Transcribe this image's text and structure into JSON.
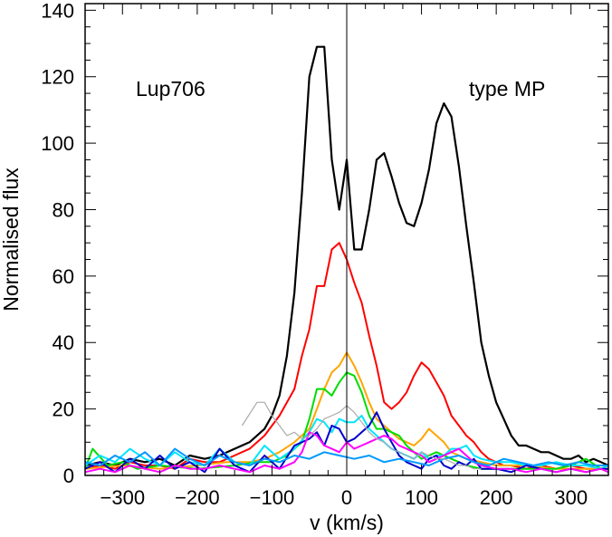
{
  "chart_data": {
    "type": "line",
    "title": "",
    "xlabel": "v (km/s)",
    "ylabel": "Normalised flux",
    "xlim": [
      -350,
      350
    ],
    "ylim": [
      0,
      142
    ],
    "xticks": [
      -300,
      -200,
      -100,
      0,
      100,
      200,
      300
    ],
    "yticks": [
      0,
      20,
      40,
      60,
      80,
      100,
      120,
      140
    ],
    "grid": false,
    "legend": "none",
    "zero_line": 0,
    "annotations": [
      {
        "text": "Lup706",
        "position": "upper-left"
      },
      {
        "text": "type MP",
        "position": "upper-right"
      }
    ],
    "series": [
      {
        "color": "#000000",
        "width": 2.2,
        "x": [
          -350,
          -330,
          -310,
          -290,
          -270,
          -250,
          -230,
          -210,
          -190,
          -170,
          -150,
          -130,
          -110,
          -100,
          -90,
          -80,
          -70,
          -60,
          -50,
          -40,
          -30,
          -20,
          -10,
          0,
          10,
          20,
          30,
          40,
          50,
          60,
          70,
          80,
          90,
          100,
          110,
          120,
          130,
          140,
          150,
          160,
          170,
          180,
          190,
          200,
          210,
          220,
          230,
          240,
          250,
          260,
          270,
          280,
          290,
          300,
          310,
          320,
          330,
          340,
          350
        ],
        "y": [
          3,
          4,
          3,
          5,
          4,
          5,
          3,
          6,
          5,
          6,
          8,
          10,
          14,
          18,
          24,
          36,
          55,
          85,
          120,
          129,
          129,
          95,
          80,
          95,
          68,
          68,
          80,
          95,
          97,
          90,
          82,
          76,
          75,
          82,
          92,
          106,
          112,
          108,
          93,
          75,
          58,
          40,
          30,
          22,
          17,
          12,
          9,
          9,
          8,
          7,
          7,
          6,
          5,
          5,
          6,
          4,
          5,
          4,
          3
        ]
      },
      {
        "color": "#ff0000",
        "width": 2,
        "x": [
          -350,
          -330,
          -310,
          -290,
          -270,
          -250,
          -230,
          -210,
          -190,
          -170,
          -150,
          -130,
          -110,
          -90,
          -70,
          -60,
          -50,
          -40,
          -30,
          -20,
          -10,
          0,
          10,
          20,
          30,
          40,
          50,
          60,
          70,
          80,
          90,
          100,
          110,
          120,
          130,
          140,
          150,
          160,
          170,
          180,
          190,
          200,
          210,
          220,
          240,
          260,
          280,
          300,
          320,
          340,
          350
        ],
        "y": [
          2,
          3,
          2,
          4,
          3,
          3,
          2,
          5,
          4,
          4,
          6,
          8,
          12,
          18,
          26,
          36,
          44,
          57,
          57,
          68,
          70,
          65,
          58,
          52,
          42,
          33,
          22,
          20,
          22,
          25,
          30,
          34,
          32,
          28,
          24,
          18,
          15,
          12,
          10,
          7,
          5,
          4,
          3,
          3,
          2,
          3,
          2,
          3,
          2,
          2,
          2
        ]
      },
      {
        "color": "#ffa500",
        "width": 2,
        "x": [
          -350,
          -300,
          -250,
          -200,
          -160,
          -130,
          -110,
          -90,
          -70,
          -50,
          -40,
          -30,
          -20,
          -10,
          0,
          10,
          20,
          30,
          40,
          50,
          60,
          70,
          80,
          90,
          100,
          110,
          120,
          130,
          140,
          150,
          160,
          180,
          200,
          240,
          280,
          320,
          350
        ],
        "y": [
          2,
          3,
          2,
          3,
          4,
          4,
          5,
          7,
          10,
          14,
          20,
          26,
          31,
          33,
          37,
          33,
          28,
          22,
          17,
          15,
          13,
          11,
          10,
          9,
          11,
          14,
          12,
          10,
          7,
          6,
          5,
          4,
          3,
          3,
          2,
          2,
          2
        ]
      },
      {
        "color": "#00dd00",
        "width": 2,
        "x": [
          -350,
          -340,
          -320,
          -300,
          -280,
          -250,
          -200,
          -150,
          -120,
          -100,
          -80,
          -60,
          -50,
          -40,
          -30,
          -20,
          -10,
          0,
          10,
          20,
          30,
          40,
          50,
          60,
          70,
          80,
          90,
          100,
          110,
          120,
          130,
          140,
          150,
          160,
          180,
          200,
          240,
          280,
          300,
          320,
          340,
          350
        ],
        "y": [
          2,
          8,
          3,
          4,
          2,
          3,
          2,
          3,
          4,
          4,
          6,
          10,
          17,
          26,
          26,
          24,
          28,
          31,
          30,
          25,
          18,
          14,
          14,
          13,
          12,
          9,
          7,
          5,
          6,
          7,
          6,
          5,
          4,
          3,
          2,
          2,
          2,
          2,
          3,
          5,
          2,
          3
        ]
      },
      {
        "color": "#00e5ff",
        "width": 2,
        "x": [
          -350,
          -330,
          -310,
          -290,
          -270,
          -250,
          -230,
          -210,
          -190,
          -170,
          -150,
          -130,
          -110,
          -90,
          -70,
          -50,
          -40,
          -30,
          -20,
          -10,
          0,
          10,
          20,
          30,
          40,
          50,
          60,
          70,
          80,
          90,
          100,
          110,
          120,
          130,
          140,
          150,
          160,
          170,
          180,
          200,
          220,
          240,
          260,
          280,
          300,
          320,
          340,
          350
        ],
        "y": [
          3,
          6,
          4,
          8,
          5,
          3,
          7,
          4,
          3,
          8,
          4,
          3,
          9,
          5,
          8,
          13,
          17,
          16,
          13,
          17,
          16,
          16,
          18,
          14,
          12,
          10,
          8,
          7,
          6,
          5,
          7,
          5,
          6,
          6,
          8,
          8,
          9,
          6,
          5,
          4,
          4,
          3,
          3,
          4,
          3,
          3,
          2,
          3
        ]
      },
      {
        "color": "#0000cc",
        "width": 2,
        "x": [
          -350,
          -330,
          -310,
          -290,
          -270,
          -250,
          -230,
          -210,
          -190,
          -170,
          -150,
          -130,
          -110,
          -90,
          -70,
          -50,
          -40,
          -30,
          -20,
          -10,
          0,
          10,
          20,
          30,
          40,
          50,
          60,
          70,
          80,
          90,
          100,
          110,
          120,
          130,
          140,
          150,
          160,
          170,
          180,
          200,
          220,
          240,
          260,
          280,
          300,
          320,
          340,
          350
        ],
        "y": [
          2,
          4,
          1,
          5,
          2,
          6,
          2,
          4,
          1,
          8,
          3,
          1,
          6,
          2,
          9,
          11,
          13,
          9,
          15,
          14,
          10,
          11,
          13,
          15,
          19,
          14,
          10,
          6,
          4,
          3,
          2,
          5,
          6,
          3,
          2,
          4,
          3,
          5,
          2,
          2,
          1,
          3,
          2,
          1,
          2,
          1,
          2,
          2
        ]
      },
      {
        "color": "#ff00ff",
        "width": 2,
        "x": [
          -350,
          -330,
          -310,
          -290,
          -270,
          -250,
          -230,
          -210,
          -190,
          -170,
          -150,
          -130,
          -110,
          -90,
          -70,
          -60,
          -50,
          -40,
          -30,
          -20,
          -10,
          0,
          10,
          20,
          30,
          40,
          50,
          60,
          70,
          80,
          90,
          100,
          110,
          120,
          130,
          140,
          150,
          160,
          170,
          180,
          200,
          220,
          240,
          260,
          280,
          300,
          320,
          340,
          350
        ],
        "y": [
          1,
          2,
          1,
          3,
          2,
          1,
          3,
          2,
          2,
          3,
          2,
          1,
          3,
          2,
          4,
          7,
          13,
          12,
          9,
          8,
          7,
          10,
          8,
          9,
          10,
          11,
          12,
          11,
          9,
          8,
          7,
          6,
          4,
          5,
          6,
          7,
          8,
          6,
          4,
          3,
          2,
          2,
          1,
          2,
          1,
          2,
          1,
          2,
          1
        ]
      },
      {
        "color": "#0099ff",
        "width": 2,
        "x": [
          -350,
          -330,
          -310,
          -290,
          -270,
          -250,
          -230,
          -210,
          -190,
          -170,
          -150,
          -130,
          -110,
          -90,
          -70,
          -50,
          -30,
          -10,
          10,
          30,
          50,
          70,
          90,
          110,
          130,
          150,
          170,
          190,
          210,
          230,
          250,
          270,
          290,
          310,
          330,
          350
        ],
        "y": [
          4,
          3,
          6,
          4,
          7,
          3,
          8,
          5,
          3,
          6,
          4,
          3,
          5,
          4,
          6,
          5,
          7,
          6,
          5,
          6,
          4,
          5,
          4,
          3,
          5,
          6,
          4,
          3,
          5,
          4,
          3,
          4,
          3,
          4,
          3,
          3
        ]
      },
      {
        "color": "#aaaaaa",
        "width": 1.2,
        "x": [
          -140,
          -120,
          -110,
          -100,
          -90,
          -80,
          -70,
          -60,
          -50,
          -40,
          -30,
          -20,
          -10,
          0,
          10,
          20,
          30,
          40,
          50,
          60,
          70,
          80,
          90,
          100,
          110,
          120,
          130,
          140,
          150,
          160,
          170,
          180
        ],
        "y": [
          15,
          22,
          22,
          18,
          15,
          12,
          13,
          11,
          12,
          14,
          17,
          18,
          19,
          21,
          19,
          16,
          13,
          11,
          10,
          8,
          7,
          6,
          5,
          7,
          6,
          5,
          5,
          4,
          3,
          3,
          2,
          2
        ]
      }
    ]
  }
}
